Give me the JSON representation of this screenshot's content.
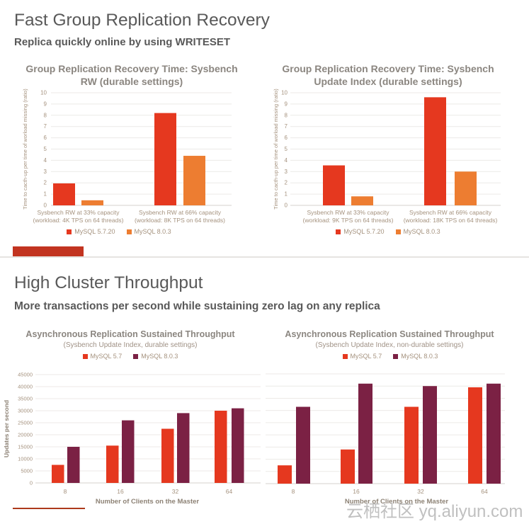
{
  "slide1": {
    "title": "Fast Group Replication Recovery",
    "subtitle": "Replica quickly online by using WRITESET"
  },
  "slide2": {
    "title": "High Cluster Throughput",
    "subtitle": "More transactions per second while sustaining zero lag on any replica"
  },
  "watermark": "云栖社区 yq.aliyun.com",
  "colors": {
    "red": "#E5381F",
    "orange": "#ED7D31",
    "maroon": "#7B2144",
    "accent_bar": "#C23420"
  },
  "chart_data": [
    {
      "id": "c1",
      "type": "bar",
      "title": "Group Replication Recovery Time: Sysbench\nRW (durable settings)",
      "ylabel": "Time to cacth-up per time of worload missing (ratio)",
      "ylim": [
        0,
        10
      ],
      "ytick_step": 1,
      "grid": true,
      "legend_position": "bottom",
      "categories": [
        "Sysbench RW at 33% capacity\n(workload: 4K TPS on 64 threads)",
        "Sysbench RW at 66% capacity\n(workload: 8K TPS on 64 threads)"
      ],
      "series": [
        {
          "name": "MySQL 5.7.20",
          "color": "#E5381F",
          "values": [
            1.95,
            8.2
          ]
        },
        {
          "name": "MySQL 8.0.3",
          "color": "#ED7D31",
          "values": [
            0.45,
            4.4
          ]
        }
      ]
    },
    {
      "id": "c2",
      "type": "bar",
      "title": "Group Replication Recovery Time: Sysbench\nUpdate Index (durable settings)",
      "ylabel": "Time to cacth-up per time of worload missing (ratio)",
      "ylim": [
        0,
        10
      ],
      "ytick_step": 1,
      "grid": true,
      "legend_position": "bottom",
      "categories": [
        "Sysbench RW at 33% capacity\n(workload: 9K TPS on 64 threads)",
        "Sysbench RW at 66% capacity\n(workload: 18K TPS on 64 threads)"
      ],
      "series": [
        {
          "name": "MySQL 5.7.20",
          "color": "#E5381F",
          "values": [
            3.55,
            9.6
          ]
        },
        {
          "name": "MySQL 8.0.3",
          "color": "#ED7D31",
          "values": [
            0.8,
            3.0
          ]
        }
      ]
    },
    {
      "id": "c3",
      "type": "bar",
      "title": "Asynchronous Replication Sustained Throughput",
      "subtitle": "(Sysbench Update Index, durable settings)",
      "ylabel": "Updates per second",
      "xlabel": "Number of Clients on the Master",
      "ylim": [
        0,
        45000
      ],
      "ytick_step": 5000,
      "grid": true,
      "legend_position": "top",
      "categories": [
        "8",
        "16",
        "32",
        "64"
      ],
      "series": [
        {
          "name": "MySQL 5.7",
          "color": "#E5381F",
          "values": [
            7500,
            15500,
            22500,
            30000
          ]
        },
        {
          "name": "MySQL 8.0.3",
          "color": "#7B2144",
          "values": [
            15000,
            26000,
            29000,
            31000
          ]
        }
      ]
    },
    {
      "id": "c4",
      "type": "bar",
      "title": "Asynchronous Replication Sustained Throughput",
      "subtitle": "(Sysbench Update Index, non-durable settings)",
      "ylabel": "",
      "xlabel": "Number of Clients on the Master",
      "ylim": [
        0,
        45000
      ],
      "ytick_step": 5000,
      "grid": true,
      "legend_position": "top",
      "categories": [
        "8",
        "16",
        "32",
        "64"
      ],
      "series": [
        {
          "name": "MySQL 5.7",
          "color": "#E5381F",
          "values": [
            7500,
            14000,
            31500,
            39500
          ]
        },
        {
          "name": "MySQL 8.0.3",
          "color": "#7B2144",
          "values": [
            31500,
            41000,
            40000,
            41000
          ]
        }
      ]
    }
  ]
}
